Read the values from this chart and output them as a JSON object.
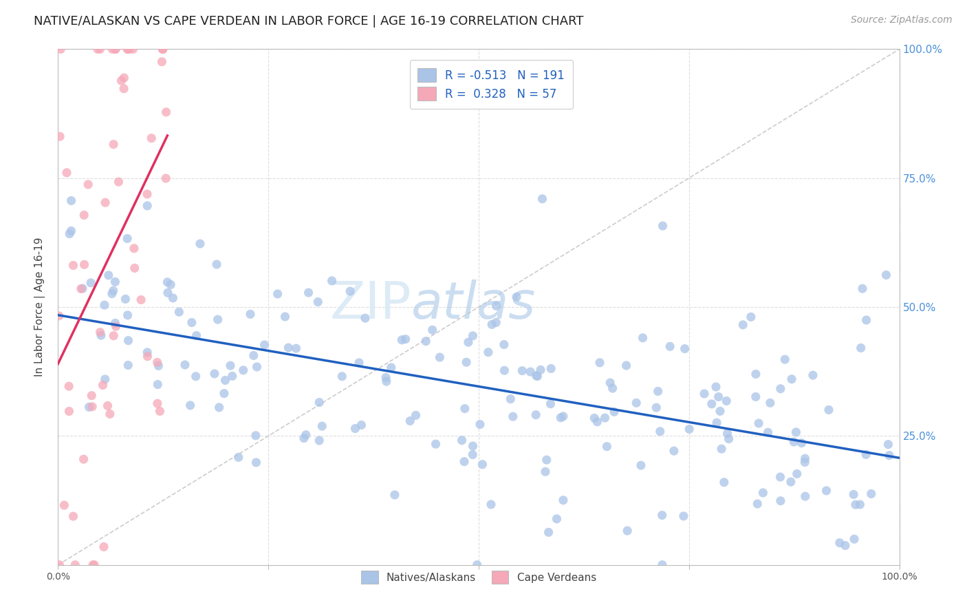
{
  "title": "NATIVE/ALASKAN VS CAPE VERDEAN IN LABOR FORCE | AGE 16-19 CORRELATION CHART",
  "source": "Source: ZipAtlas.com",
  "ylabel": "In Labor Force | Age 16-19",
  "xmin": 0.0,
  "xmax": 1.0,
  "ymin": 0.0,
  "ymax": 1.0,
  "blue_R": -0.513,
  "blue_N": 191,
  "pink_R": 0.328,
  "pink_N": 57,
  "blue_color": "#aac4e8",
  "blue_line_color": "#2060c0",
  "pink_color": "#f5a8b8",
  "pink_line_color": "#e03060",
  "diagonal_color": "#cccccc",
  "legend_label_blue": "Natives/Alaskans",
  "legend_label_pink": "Cape Verdeans",
  "title_fontsize": 13,
  "source_fontsize": 10,
  "watermark_zip": "ZIP",
  "watermark_atlas": "atlas",
  "background_color": "#ffffff",
  "grid_color": "#dddddd",
  "axis_color": "#bbbbbb",
  "right_label_color": "#4a90d9",
  "seed": 17
}
